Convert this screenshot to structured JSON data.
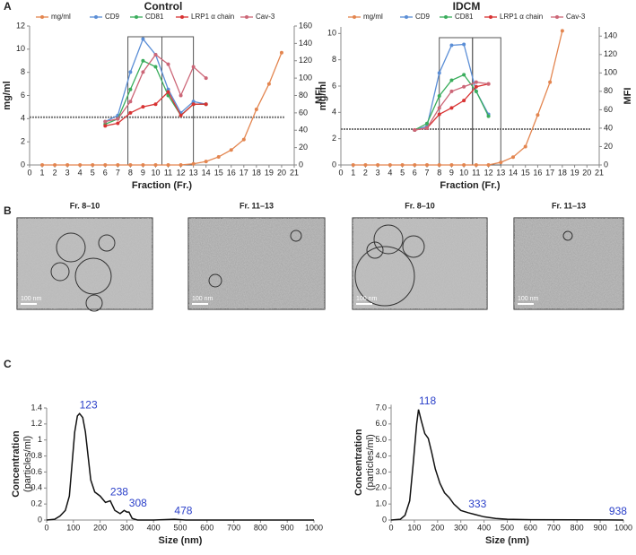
{
  "panels": [
    "A",
    "B",
    "C"
  ],
  "micrographs": [
    {
      "title": "Fr. 8–10",
      "scale": "100 nm"
    },
    {
      "title": "Fr. 11–13",
      "scale": "100 nm"
    },
    {
      "title": "Fr. 8–10",
      "scale": "100 nm"
    },
    {
      "title": "Fr. 11–13",
      "scale": "100 nm"
    }
  ],
  "chart_data": [
    {
      "type": "line",
      "title": "Control",
      "xlabel": "Fraction (Fr.)",
      "ylabel": "mg/ml",
      "y2label": "MFI",
      "x": [
        1,
        2,
        3,
        4,
        5,
        6,
        7,
        8,
        9,
        10,
        11,
        12,
        13,
        14,
        15,
        16,
        17,
        18,
        19,
        20
      ],
      "xlim": [
        0,
        21
      ],
      "xticks": [
        0,
        1,
        2,
        3,
        4,
        5,
        6,
        7,
        8,
        9,
        10,
        11,
        12,
        13,
        14,
        15,
        16,
        17,
        18,
        19,
        20,
        21
      ],
      "ylim": [
        0,
        12
      ],
      "yticks": [
        0,
        2,
        4,
        6,
        8,
        10,
        12
      ],
      "y2lim": [
        0,
        160
      ],
      "y2ticks": [
        0,
        20,
        40,
        60,
        80,
        100,
        120,
        140,
        160
      ],
      "reference_y2": 55,
      "highlight_ranges": [
        [
          7.8,
          10.5
        ],
        [
          10.5,
          13
        ]
      ],
      "series": [
        {
          "name": "mg/ml",
          "color": "#e3854f",
          "values": [
            0,
            0,
            0,
            0,
            0,
            0,
            0,
            0,
            0,
            0,
            0,
            0,
            0.1,
            0.3,
            0.7,
            1.3,
            2.2,
            4.8,
            7,
            9.7
          ]
        },
        {
          "name": "CD9",
          "color": "#5b8ed6",
          "axis": "y2",
          "values": [
            null,
            null,
            null,
            null,
            null,
            50,
            57,
            107,
            145,
            127,
            87,
            60,
            73,
            70,
            null,
            null,
            null,
            null,
            null,
            null
          ]
        },
        {
          "name": "CD81",
          "color": "#3aad5c",
          "axis": "y2",
          "values": [
            null,
            null,
            null,
            null,
            null,
            47,
            53,
            87,
            120,
            113,
            80,
            57,
            70,
            70,
            null,
            null,
            null,
            null,
            null,
            null
          ]
        },
        {
          "name": "LRP1 α chain",
          "color": "#d83333",
          "axis": "y2",
          "values": [
            null,
            null,
            null,
            null,
            null,
            45,
            48,
            60,
            67,
            70,
            84,
            57,
            70,
            70,
            null,
            null,
            null,
            null,
            null,
            null
          ]
        },
        {
          "name": "Cav-3",
          "color": "#cc6677",
          "axis": "y2",
          "values": [
            null,
            null,
            null,
            null,
            null,
            50,
            53,
            73,
            107,
            127,
            116,
            80,
            113,
            100,
            null,
            null,
            null,
            null,
            null,
            null
          ]
        }
      ]
    },
    {
      "type": "line",
      "title": "IDCM",
      "xlabel": "Fraction (Fr.)",
      "ylabel": "mg/ml",
      "y2label": "MFI",
      "x": [
        1,
        2,
        3,
        4,
        5,
        6,
        7,
        8,
        9,
        10,
        11,
        12,
        13,
        14,
        15,
        16,
        17,
        18
      ],
      "xlim": [
        0,
        21
      ],
      "xticks": [
        0,
        1,
        2,
        3,
        4,
        5,
        6,
        7,
        8,
        9,
        10,
        11,
        12,
        13,
        14,
        15,
        16,
        17,
        18,
        19,
        20,
        21
      ],
      "ylim": [
        0,
        10.5
      ],
      "yticks": [
        0,
        2,
        4,
        6,
        8,
        10
      ],
      "y2lim": [
        0,
        150
      ],
      "y2ticks": [
        0,
        20,
        40,
        60,
        80,
        100,
        120,
        140
      ],
      "reference_y2": 39,
      "highlight_ranges": [
        [
          8,
          10.7
        ],
        [
          10.7,
          13
        ]
      ],
      "series": [
        {
          "name": "mg/ml",
          "color": "#e3854f",
          "values": [
            0,
            0,
            0,
            0,
            0,
            0,
            0,
            0,
            0,
            0,
            0,
            0,
            0.2,
            0.6,
            1.4,
            3.8,
            6.3,
            10.2
          ]
        },
        {
          "name": "CD9",
          "color": "#5b8ed6",
          "axis": "y2",
          "values": [
            null,
            null,
            null,
            null,
            null,
            38,
            42,
            100,
            130,
            131,
            80,
            55,
            null,
            null,
            null,
            null,
            null,
            null
          ]
        },
        {
          "name": "CD81",
          "color": "#3aad5c",
          "axis": "y2",
          "values": [
            null,
            null,
            null,
            null,
            null,
            38,
            45,
            75,
            92,
            98,
            80,
            53,
            null,
            null,
            null,
            null,
            null,
            null
          ]
        },
        {
          "name": "LRP1 α chain",
          "color": "#d83333",
          "axis": "y2",
          "values": [
            null,
            null,
            null,
            null,
            null,
            38,
            40,
            55,
            62,
            70,
            85,
            88,
            null,
            null,
            null,
            null,
            null,
            null
          ]
        },
        {
          "name": "Cav-3",
          "color": "#cc6677",
          "axis": "y2",
          "values": [
            null,
            null,
            null,
            null,
            null,
            38,
            40,
            62,
            80,
            85,
            90,
            88,
            null,
            null,
            null,
            null,
            null,
            null
          ]
        }
      ]
    },
    {
      "type": "line",
      "xlabel": "Size (nm)",
      "ylabel": [
        "Concentration",
        "(particles/ml)"
      ],
      "color": "#111",
      "peak_color": "#2a3fc9",
      "x": [
        0,
        30,
        50,
        70,
        85,
        95,
        105,
        115,
        123,
        135,
        145,
        155,
        165,
        180,
        200,
        220,
        238,
        255,
        275,
        290,
        300,
        308,
        320,
        340,
        400,
        478,
        520,
        1000
      ],
      "values": [
        0,
        0.01,
        0.05,
        0.12,
        0.3,
        0.7,
        1.1,
        1.3,
        1.33,
        1.28,
        1.1,
        0.8,
        0.5,
        0.35,
        0.3,
        0.22,
        0.24,
        0.12,
        0.08,
        0.12,
        0.1,
        0.1,
        0.02,
        0,
        0,
        0.01,
        0,
        0
      ],
      "peaks": [
        123,
        238,
        308,
        478
      ],
      "xlim": [
        0,
        1000
      ],
      "xticks": [
        0,
        100,
        200,
        300,
        400,
        500,
        600,
        700,
        800,
        900,
        1000
      ],
      "ylim": [
        0,
        1.4
      ],
      "yticks": [
        0,
        0.2,
        0.4,
        0.6,
        0.8,
        1,
        1.2,
        1.4
      ]
    },
    {
      "type": "line",
      "xlabel": "Size (nm)",
      "ylabel": [
        "Concentration",
        "(particles/ml)"
      ],
      "color": "#111",
      "peak_color": "#2a3fc9",
      "x": [
        0,
        40,
        60,
        80,
        95,
        110,
        118,
        130,
        145,
        160,
        175,
        190,
        210,
        230,
        250,
        270,
        300,
        333,
        360,
        400,
        450,
        500,
        600,
        938,
        1000
      ],
      "values": [
        0,
        0.05,
        0.3,
        1.2,
        3.5,
        6,
        6.9,
        6.2,
        5.4,
        5.1,
        4.2,
        3.2,
        2.3,
        1.7,
        1.4,
        1,
        0.6,
        0.45,
        0.35,
        0.2,
        0.1,
        0.05,
        0.02,
        0.01,
        0
      ],
      "peaks": [
        118,
        333,
        938
      ],
      "xlim": [
        0,
        1000
      ],
      "xticks": [
        0,
        100,
        200,
        300,
        400,
        500,
        600,
        700,
        800,
        900,
        1000
      ],
      "ylim": [
        0,
        7.2
      ],
      "yticks": [
        0,
        {
          "value": 1,
          "label": "1.0"
        },
        {
          "value": 2,
          "label": "2.0"
        },
        {
          "value": 3,
          "label": "3.0"
        },
        {
          "value": 4,
          "label": "4.0"
        },
        {
          "value": 5,
          "label": "5.0"
        },
        {
          "value": 6,
          "label": "6.0"
        },
        {
          "value": 7,
          "label": "7.0"
        }
      ]
    }
  ]
}
